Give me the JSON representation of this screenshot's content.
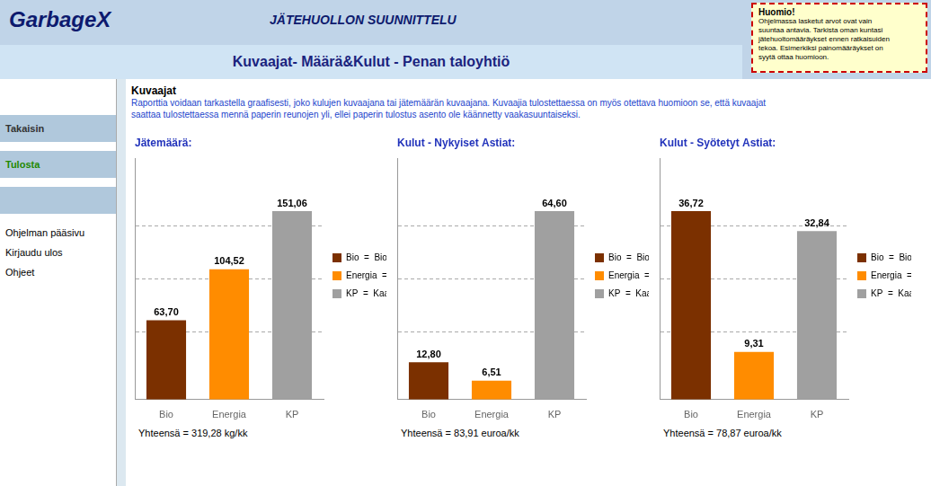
{
  "title": "Kuvaajat- Määrä&Kulut - Penan taloyhtiö",
  "subtitle": "Kuvaajat",
  "annotations": [
    "GarbageX",
    "JÄTEHUOLLON SUUNNITTELU",
    "Huomio!",
    "Ohjelmassa lasketut arvot ovat vain\nsuuntaa antavia. Tarkista oman kuntasi\njätehuoltomääräykset ennen ratkaisuiden\ntekoa. Esimerkiksi painomääräykset on\nsyytä ottaa huomioon.",
    "Takaisin",
    "Tulosta",
    "Ohjelman pääsivu",
    "Kirjaudu ulos",
    "Ohjeet",
    "Raporttia voidaan tarkastella graafisesti, joko kulujen kuvaajana tai jätemäärän kuvaajana. Kuvaajia tulostettaessa on myös otettava huomioon se, että kuvaajat",
    "saattaa tulostettaessa mennä paperin reunojen yli, ellei paperin tulostus asento ole käännetty vaakasuuntaiseksi."
  ],
  "chart_data": [
    {
      "type": "bar",
      "title": "Jätemäärä:",
      "categories": [
        "Bio",
        "Energia",
        "KP"
      ],
      "values": [
        63.7,
        104.52,
        151.06
      ],
      "value_labels": [
        "63,70",
        "104,52",
        "151,06"
      ],
      "data_labels": true,
      "colors": [
        "#7B3000",
        "#FF8C00",
        "#A0A0A0"
      ],
      "legend": "right",
      "legend_labels": [
        "Bio  =  Biojäte",
        "Energia  =  Energiajäte",
        "KP  =  Kaatopaikka"
      ],
      "ylim": [
        0,
        193.3568
      ],
      "yticks": [
        54.139904,
        96.6784,
        139.216896
      ],
      "grid": true,
      "tick_labels": "x",
      "annotations": [
        "Yhteensä",
        "= 319,28 kg/kk"
      ]
    },
    {
      "type": "bar",
      "title": "Kulut - Nykyiset Astiat:",
      "categories": [
        "Bio",
        "Energia",
        "KP"
      ],
      "values": [
        12.8,
        6.51,
        64.6
      ],
      "value_labels": [
        "12,80",
        "6,51",
        "64,60"
      ],
      "data_labels": true,
      "colors": [
        "#7B3000",
        "#FF8C00",
        "#A0A0A0"
      ],
      "legend": "right",
      "legend_labels": [
        "Bio  =  Biojäte",
        "Energia  =  Energiajäte",
        "KP  =  Kaatopaikka"
      ],
      "ylim": [
        0,
        82.688
      ],
      "yticks": [
        23.15264,
        41.344,
        59.53536
      ],
      "grid": true,
      "tick_labels": "x",
      "annotations": [
        "Yhteensä",
        "= 83,91 euroa/kk"
      ]
    },
    {
      "type": "bar",
      "title": "Kulut - Syötetyt Astiat:",
      "categories": [
        "Bio",
        "Energia",
        "KP"
      ],
      "values": [
        36.72,
        9.31,
        32.84
      ],
      "value_labels": [
        "36,72",
        "9,31",
        "32,84"
      ],
      "data_labels": true,
      "colors": [
        "#7B3000",
        "#FF8C00",
        "#A0A0A0"
      ],
      "legend": "right",
      "legend_labels": [
        "Bio  =  Biojäte",
        "Energia  =  Energiajäte",
        "KP  =  Kaatopaikka"
      ],
      "ylim": [
        0,
        47.0016
      ],
      "yticks": [
        13.160448,
        23.5008,
        33.841152
      ],
      "grid": true,
      "tick_labels": "x",
      "annotations": [
        "Yhteensä",
        "= 78,87 euroa/kk"
      ]
    }
  ]
}
